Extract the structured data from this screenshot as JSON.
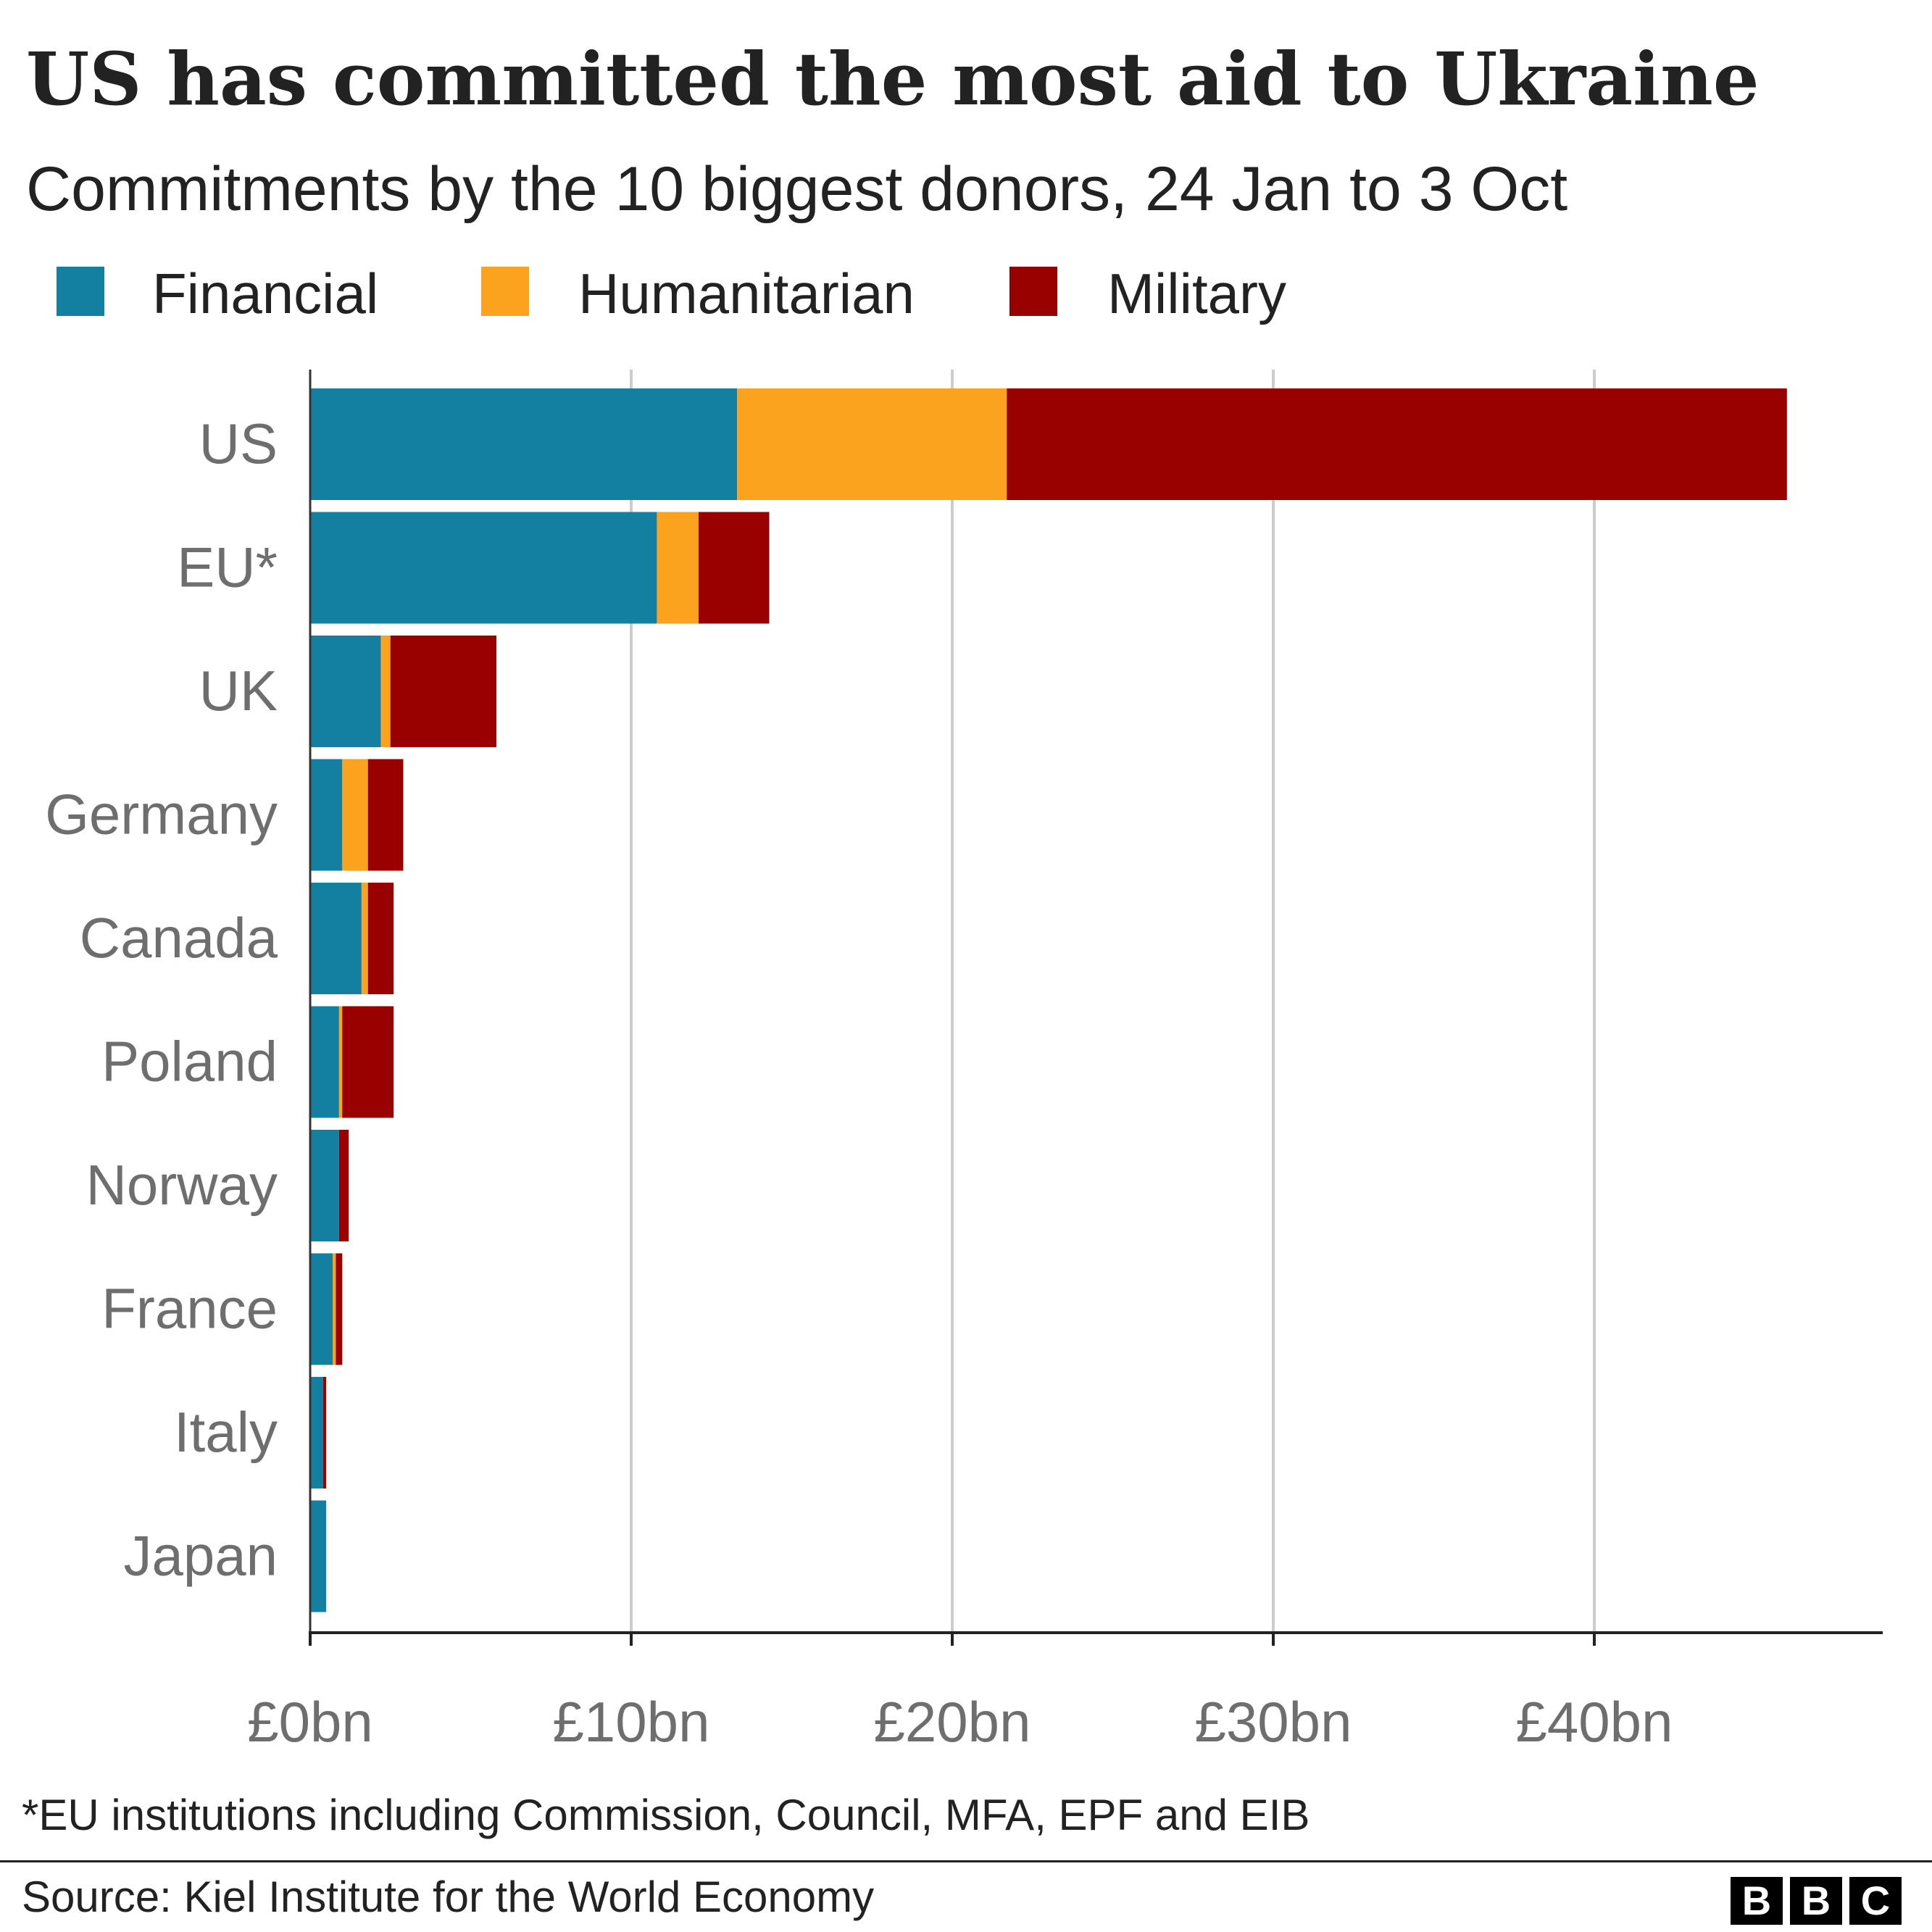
{
  "title": "US has committed the most aid to Ukraine",
  "subtitle": "Commitments by the 10 biggest donors, 24 Jan to 3 Oct",
  "footnote": "*EU institutions including Commission, Council, MFA, EPF and EIB",
  "source": "Source: Kiel Institute for the World Economy",
  "logo": [
    "B",
    "B",
    "C"
  ],
  "colors": {
    "Financial": "#1380a1",
    "Humanitarian": "#fba21f",
    "Military": "#990000"
  },
  "chart_data": {
    "type": "bar",
    "orientation": "horizontal",
    "stacked": true,
    "categories": [
      "US",
      "EU*",
      "UK",
      "Germany",
      "Canada",
      "Poland",
      "Norway",
      "France",
      "Italy",
      "Japan"
    ],
    "series": [
      {
        "name": "Financial",
        "values": [
          13.3,
          10.8,
          2.2,
          1.0,
          1.6,
          0.9,
          0.9,
          0.7,
          0.4,
          0.5
        ]
      },
      {
        "name": "Humanitarian",
        "values": [
          8.4,
          1.3,
          0.3,
          0.8,
          0.2,
          0.1,
          0.0,
          0.1,
          0.0,
          0.0
        ]
      },
      {
        "name": "Military",
        "values": [
          24.3,
          2.2,
          3.3,
          1.1,
          0.8,
          1.6,
          0.3,
          0.2,
          0.1,
          0.0
        ]
      }
    ],
    "xlim": [
      0,
      49
    ],
    "xticks": [
      0,
      10,
      20,
      30,
      40
    ],
    "xtick_labels": [
      "£0bn",
      "£10bn",
      "£20bn",
      "£30bn",
      "£40bn"
    ],
    "grid": true,
    "legend_position": "top-left"
  }
}
